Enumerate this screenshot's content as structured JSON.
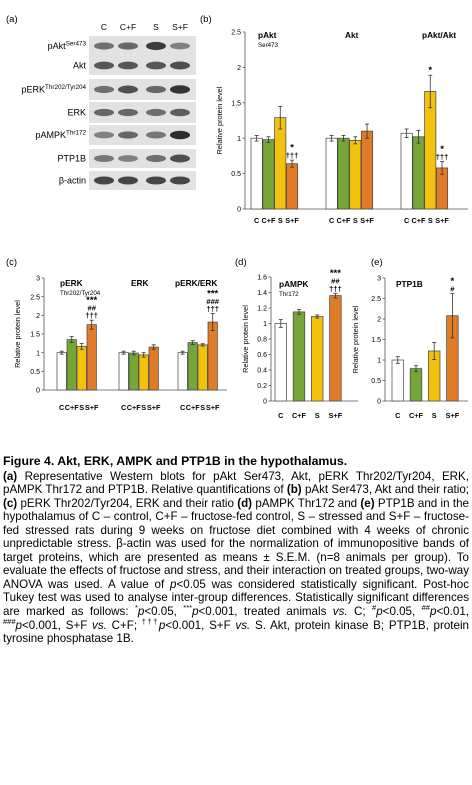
{
  "blots": {
    "panel_letter": "(a)",
    "lanes": [
      "C",
      "C+F",
      "S",
      "S+F"
    ],
    "rows": [
      {
        "label": "pAkt",
        "sup": "Ser473"
      },
      {
        "label": "Akt",
        "sup": ""
      },
      {
        "label": "pERK",
        "sup": "Thr202/Tyr204"
      },
      {
        "label": "ERK",
        "sup": ""
      },
      {
        "label": "pAMPK",
        "sup": "Thr172"
      },
      {
        "label": "PTP1B",
        "sup": ""
      },
      {
        "label": "β-actin",
        "sup": ""
      }
    ]
  },
  "colors": {
    "C": "#ffffff",
    "C+F": "#76a63a",
    "S": "#f2c20f",
    "S+F": "#e07b28",
    "axis": "#555555"
  },
  "chart_data": [
    {
      "type": "bar",
      "panel": "(b)",
      "ylabel": "Relative protein level",
      "ylim": [
        0,
        2.5
      ],
      "yticks": [
        "0",
        "0.5",
        "1",
        "1.5",
        "2",
        "2.5"
      ],
      "categories": [
        "C",
        "C+F",
        "S",
        "S+F"
      ],
      "groups": [
        {
          "title": "pAkt",
          "subtitle": "Ser473",
          "values": [
            1.0,
            0.98,
            1.29,
            0.64
          ],
          "errors": [
            0.04,
            0.04,
            0.16,
            0.05
          ],
          "marks": [
            "",
            "",
            "",
            "*\n†††"
          ]
        },
        {
          "title": "Akt",
          "subtitle": "",
          "values": [
            1.0,
            1.0,
            0.97,
            1.1
          ],
          "errors": [
            0.04,
            0.04,
            0.05,
            0.1
          ],
          "marks": [
            "",
            "",
            "",
            ""
          ]
        },
        {
          "title": "pAkt/Akt",
          "subtitle": "",
          "values": [
            1.07,
            1.02,
            1.66,
            0.58
          ],
          "errors": [
            0.06,
            0.09,
            0.23,
            0.09
          ],
          "marks": [
            "",
            "",
            "*",
            "*\n†††"
          ]
        }
      ]
    },
    {
      "type": "bar",
      "panel": "(c)",
      "ylabel": "Relative protein level",
      "ylim": [
        0,
        3
      ],
      "yticks": [
        "0",
        "0.5",
        "1",
        "1.5",
        "2",
        "2.5",
        "3"
      ],
      "categories": [
        "C",
        "C+F",
        "S",
        "S+F"
      ],
      "groups": [
        {
          "title": "pERK",
          "subtitle": "Thr202/Tyr204",
          "values": [
            1.0,
            1.35,
            1.17,
            1.75
          ],
          "errors": [
            0.04,
            0.08,
            0.08,
            0.12
          ],
          "marks": [
            "",
            "",
            "",
            "***\n##\n†††"
          ]
        },
        {
          "title": "ERK",
          "subtitle": "",
          "values": [
            1.0,
            0.99,
            0.94,
            1.15
          ],
          "errors": [
            0.04,
            0.05,
            0.06,
            0.06
          ],
          "marks": [
            "",
            "",
            "",
            ""
          ]
        },
        {
          "title": "pERK/ERK",
          "subtitle": "",
          "values": [
            1.0,
            1.27,
            1.21,
            1.82
          ],
          "errors": [
            0.04,
            0.05,
            0.03,
            0.23
          ],
          "marks": [
            "",
            "",
            "",
            "***\n###\n†††"
          ]
        }
      ]
    },
    {
      "type": "bar",
      "panel": "(d)",
      "ylabel": "Relative protein level",
      "ylim": [
        0,
        1.6
      ],
      "yticks": [
        "0",
        "0.2",
        "0.4",
        "0.6",
        "0.8",
        "1",
        "1.2",
        "1.4",
        "1.6"
      ],
      "categories": [
        "C",
        "C+F",
        "S",
        "S+F"
      ],
      "groups": [
        {
          "title": "pAMPK",
          "subtitle": "Thr172",
          "values": [
            1.0,
            1.15,
            1.09,
            1.36
          ],
          "errors": [
            0.05,
            0.03,
            0.02,
            0.03
          ],
          "marks": [
            "",
            "",
            "",
            "***\n##\n†††"
          ]
        }
      ]
    },
    {
      "type": "bar",
      "panel": "(e)",
      "ylabel": "Relative protein level",
      "ylim": [
        0,
        3
      ],
      "yticks": [
        "0",
        "0.5",
        "1",
        "1.5",
        "2",
        "2.5",
        "3"
      ],
      "categories": [
        "C",
        "C+F",
        "S",
        "S+F"
      ],
      "groups": [
        {
          "title": "PTP1B",
          "subtitle": "",
          "values": [
            1.0,
            0.79,
            1.22,
            2.08
          ],
          "errors": [
            0.08,
            0.07,
            0.21,
            0.54
          ],
          "marks": [
            "",
            "",
            "",
            "*\n#"
          ]
        }
      ]
    }
  ],
  "caption": {
    "title": "Figure 4. Akt, ERK, AMPK and PTP1B in the hypothalamus.",
    "body": [
      {
        "b": "(a)"
      },
      {
        "t": " Representative Western blots for pAkt Ser473, Akt, pERK Thr202/Tyr204, ERK, pAMPK Thr172 and PTP1B. Relative quantifications of "
      },
      {
        "b": "(b)"
      },
      {
        "t": " pAkt Ser473, Akt and their ratio; "
      },
      {
        "b": "(c)"
      },
      {
        "t": " pERK Thr202/Tyr204, ERK and their ratio "
      },
      {
        "b": "(d)"
      },
      {
        "t": " pAMPK Thr172 and "
      },
      {
        "b": "(e)"
      },
      {
        "t": " PTP1B and in the hypothalamus of C – control, C+F – fructose-fed control, S – stressed and S+F – fructose-fed stressed rats during 9 weeks on fructose diet combined with 4 weeks of chronic unpredictable stress. β-actin was used for the normalization of immunopositive bands of target proteins, which are presented as means ± S.E.M. (n=8 animals per group). To evaluate the effects of fructose and stress, and their interaction on treated groups, two-way ANOVA was used. A value of "
      },
      {
        "i": "p"
      },
      {
        "t": "<0.05 was considered statistically significant. Post-hoc Tukey test was used to analyse inter-group differences. Statistically significant differences are marked as follows: "
      },
      {
        "s": "*"
      },
      {
        "i": "p"
      },
      {
        "t": "<0.05, "
      },
      {
        "s": "***"
      },
      {
        "i": "p"
      },
      {
        "t": "<0.001, treated animals "
      },
      {
        "i": "vs."
      },
      {
        "t": " C; "
      },
      {
        "s": "#"
      },
      {
        "i": "p"
      },
      {
        "t": "<0.05, "
      },
      {
        "s": "##"
      },
      {
        "i": "p"
      },
      {
        "t": "<0.01, "
      },
      {
        "s": "###"
      },
      {
        "i": "p"
      },
      {
        "t": "<0.001, S+F "
      },
      {
        "i": "vs."
      },
      {
        "t": " C+F; "
      },
      {
        "s": "†††"
      },
      {
        "i": "p"
      },
      {
        "t": "<0.001, S+F "
      },
      {
        "i": "vs."
      },
      {
        "t": " S. Akt, protein kinase B; PTP1B, protein tyrosine phosphatase 1B."
      }
    ]
  }
}
